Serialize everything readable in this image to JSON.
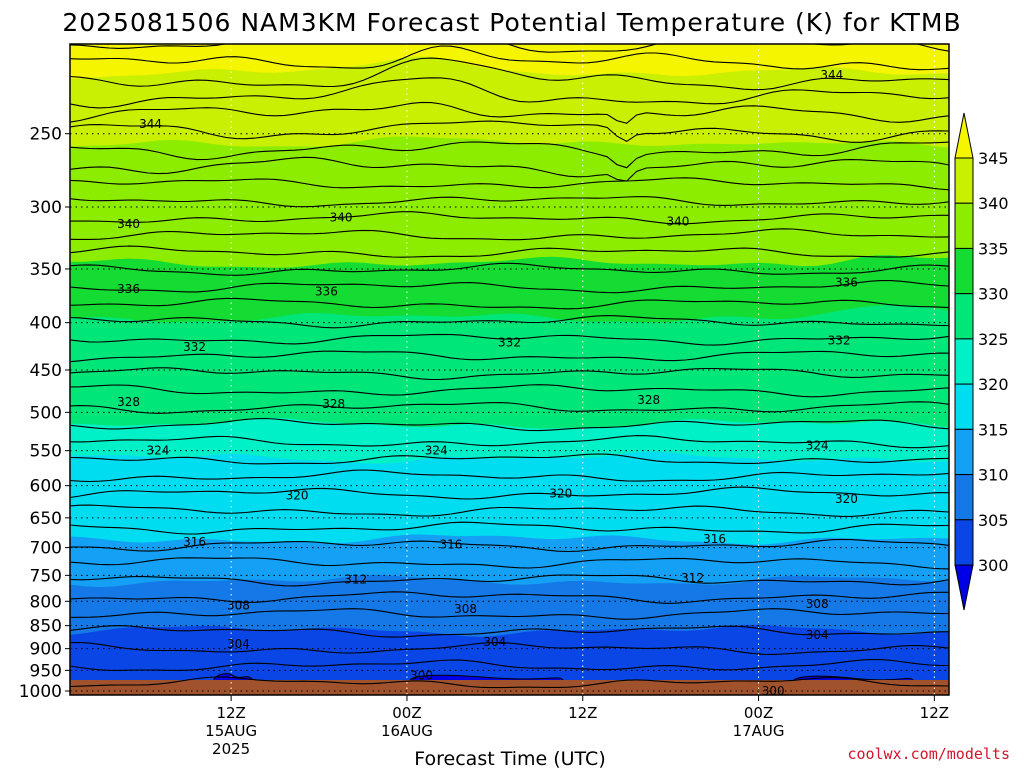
{
  "chart_data": {
    "type": "heatmap",
    "title": "2025081506 NAM3KM Forecast Potential Temperature (K) for KTMB",
    "xlabel": "Forecast Time (UTC)",
    "ylabel": "",
    "credit": "coolwx.com/modelts",
    "y_axis": {
      "scale": "log",
      "inverted": true,
      "range": [
        1010,
        200
      ],
      "ticks": [
        250,
        300,
        350,
        400,
        450,
        500,
        550,
        600,
        650,
        700,
        750,
        800,
        850,
        900,
        950,
        1000
      ],
      "gridlines": true
    },
    "x_axis": {
      "range_hours": [
        -5,
        55
      ],
      "ticks": [
        {
          "hour": 6,
          "lines": [
            "12Z",
            "15AUG",
            "2025"
          ]
        },
        {
          "hour": 18,
          "lines": [
            "00Z",
            "16AUG"
          ]
        },
        {
          "hour": 30,
          "lines": [
            "12Z",
            ""
          ]
        },
        {
          "hour": 42,
          "lines": [
            "00Z",
            "17AUG"
          ]
        },
        {
          "hour": 54,
          "lines": [
            "12Z",
            ""
          ]
        }
      ],
      "gridlines": true
    },
    "colorbar": {
      "levels": [
        300,
        305,
        310,
        315,
        320,
        325,
        330,
        335,
        340,
        345
      ],
      "colors": [
        "#0000e6",
        "#0a46e6",
        "#1478e6",
        "#14a0f5",
        "#00dcf0",
        "#00f0c8",
        "#00e678",
        "#14dc32",
        "#8ced00",
        "#c8f000",
        "#f5f500"
      ],
      "extend": "both"
    },
    "fill_bands": [
      {
        "value": 345,
        "color": "#f5f500",
        "pressure": 215
      },
      {
        "value": 340,
        "color": "#c8f000",
        "pressure": 258
      },
      {
        "value": 335,
        "color": "#8ced00",
        "pressure": 345
      },
      {
        "value": 330,
        "color": "#14dc32",
        "pressure": 395
      },
      {
        "value": 325,
        "color": "#00e678",
        "pressure": 515
      },
      {
        "value": 320,
        "color": "#00f0c8",
        "pressure": 560
      },
      {
        "value": 315,
        "color": "#00dcf0",
        "pressure": 685
      },
      {
        "value": 310,
        "color": "#14a0f5",
        "pressure": 760
      },
      {
        "value": 305,
        "color": "#1478e6",
        "pressure": 860
      },
      {
        "value": 300,
        "color": "#0a46e6",
        "pressure": 1000
      }
    ],
    "contour_labels": [
      {
        "value": 344,
        "hour": 0.5,
        "pressure": 244
      },
      {
        "value": 344,
        "hour": 47,
        "pressure": 216
      },
      {
        "value": 340,
        "hour": -1,
        "pressure": 313
      },
      {
        "value": 340,
        "hour": 13.5,
        "pressure": 308
      },
      {
        "value": 340,
        "hour": 36.5,
        "pressure": 311
      },
      {
        "value": 336,
        "hour": -1,
        "pressure": 368
      },
      {
        "value": 336,
        "hour": 12.5,
        "pressure": 370
      },
      {
        "value": 336,
        "hour": 48,
        "pressure": 362
      },
      {
        "value": 332,
        "hour": 3.5,
        "pressure": 425
      },
      {
        "value": 332,
        "hour": 25,
        "pressure": 420
      },
      {
        "value": 332,
        "hour": 47.5,
        "pressure": 418
      },
      {
        "value": 328,
        "hour": -1,
        "pressure": 487
      },
      {
        "value": 328,
        "hour": 13,
        "pressure": 490
      },
      {
        "value": 328,
        "hour": 34.5,
        "pressure": 485
      },
      {
        "value": 324,
        "hour": 1,
        "pressure": 550
      },
      {
        "value": 324,
        "hour": 20,
        "pressure": 550
      },
      {
        "value": 324,
        "hour": 46,
        "pressure": 543
      },
      {
        "value": 320,
        "hour": 10.5,
        "pressure": 615
      },
      {
        "value": 320,
        "hour": 28.5,
        "pressure": 612
      },
      {
        "value": 320,
        "hour": 48,
        "pressure": 620
      },
      {
        "value": 316,
        "hour": 3.5,
        "pressure": 690
      },
      {
        "value": 316,
        "hour": 21,
        "pressure": 695
      },
      {
        "value": 316,
        "hour": 39,
        "pressure": 685
      },
      {
        "value": 312,
        "hour": 14.5,
        "pressure": 758
      },
      {
        "value": 312,
        "hour": 37.5,
        "pressure": 755
      },
      {
        "value": 308,
        "hour": 6.5,
        "pressure": 808
      },
      {
        "value": 308,
        "hour": 22,
        "pressure": 815
      },
      {
        "value": 308,
        "hour": 46,
        "pressure": 805
      },
      {
        "value": 304,
        "hour": 6.5,
        "pressure": 890
      },
      {
        "value": 304,
        "hour": 24,
        "pressure": 885
      },
      {
        "value": 304,
        "hour": 46,
        "pressure": 870
      },
      {
        "value": 300,
        "hour": 19,
        "pressure": 962
      },
      {
        "value": 300,
        "hour": 43,
        "pressure": 1000
      }
    ],
    "cold_pockets": [
      {
        "hour_start": 4.8,
        "hour_end": 7.5,
        "pressure_top": 958
      },
      {
        "hour_start": 18.2,
        "hour_end": 28.7,
        "pressure_top": 962
      },
      {
        "hour_start": 44.4,
        "hour_end": 52.6,
        "pressure_top": 964
      }
    ]
  }
}
